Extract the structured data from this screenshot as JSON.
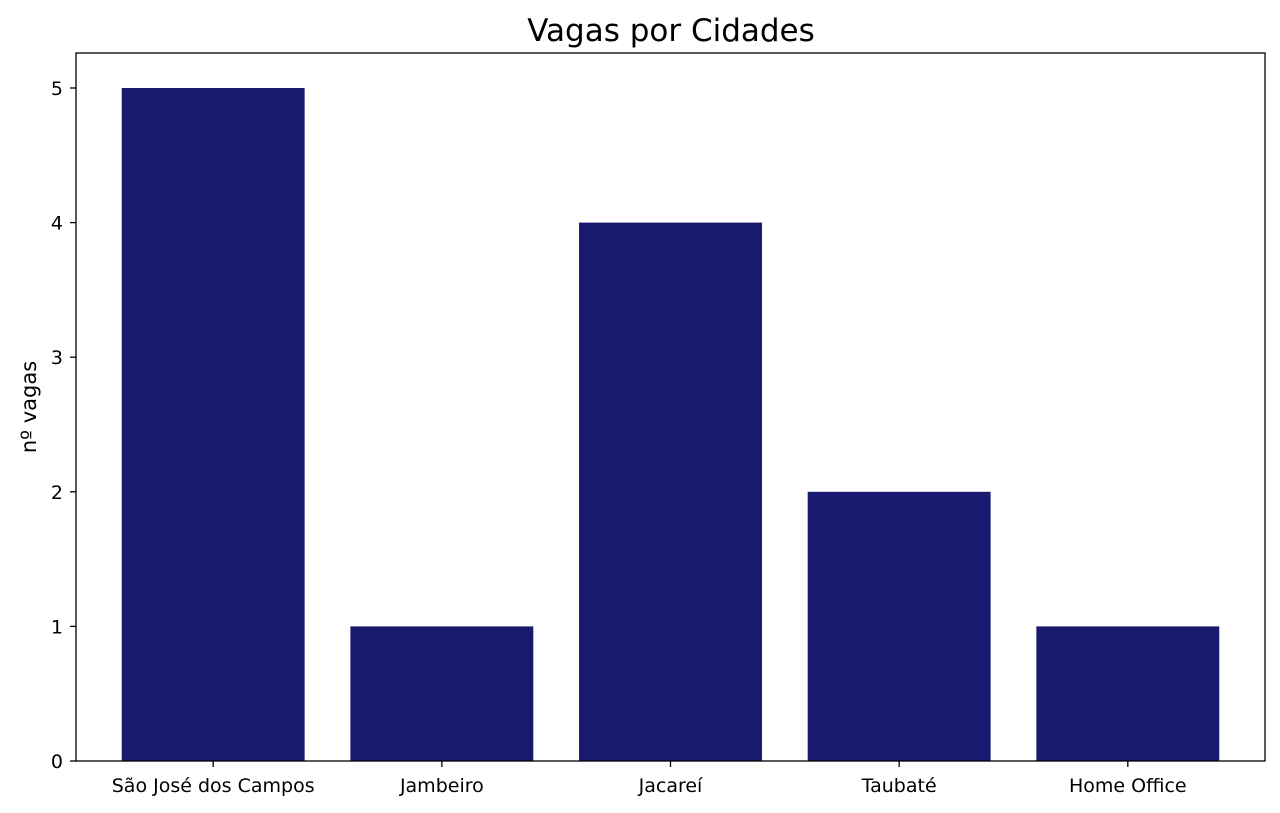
{
  "chart_data": {
    "type": "bar",
    "title": "Vagas por Cidades",
    "xlabel": "",
    "ylabel": "nº vagas",
    "categories": [
      "São José dos Campos",
      "Jambeiro",
      "Jacareí",
      "Taubaté",
      "Home Office"
    ],
    "values": [
      5,
      1,
      4,
      2,
      1
    ],
    "ylim": [
      0,
      5.26
    ],
    "yticks": [
      0,
      1,
      2,
      3,
      4,
      5
    ],
    "bar_color": "#191970",
    "grid": false,
    "legend": "none"
  }
}
